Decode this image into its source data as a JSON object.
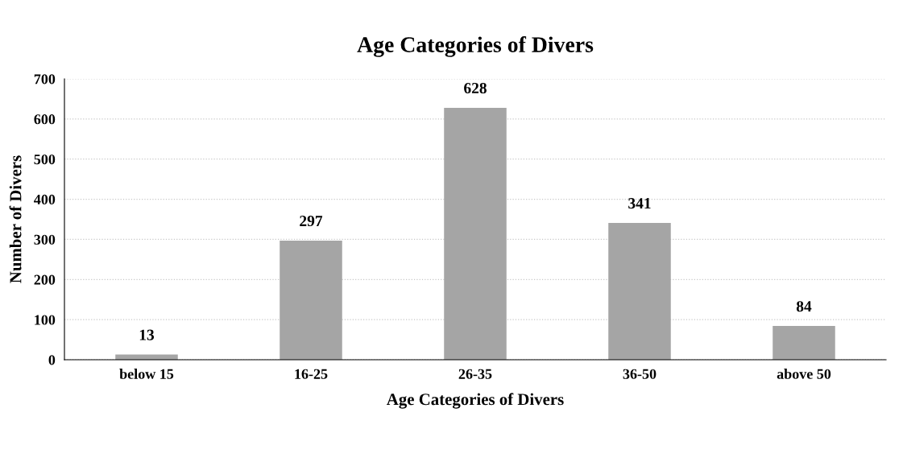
{
  "chart_data": {
    "type": "bar",
    "title": "Age Categories of Divers",
    "xlabel": "Age Categories of Divers",
    "ylabel": "Number of Divers",
    "categories": [
      "below 15",
      "16-25",
      "26-35",
      "36-50",
      "above 50"
    ],
    "values": [
      13,
      297,
      628,
      341,
      84
    ],
    "color": "#a5a5a5",
    "ylim": [
      0,
      700
    ],
    "yticks": [
      0,
      100,
      200,
      300,
      400,
      500,
      600,
      700
    ],
    "grid": "y",
    "data_labels": true
  }
}
